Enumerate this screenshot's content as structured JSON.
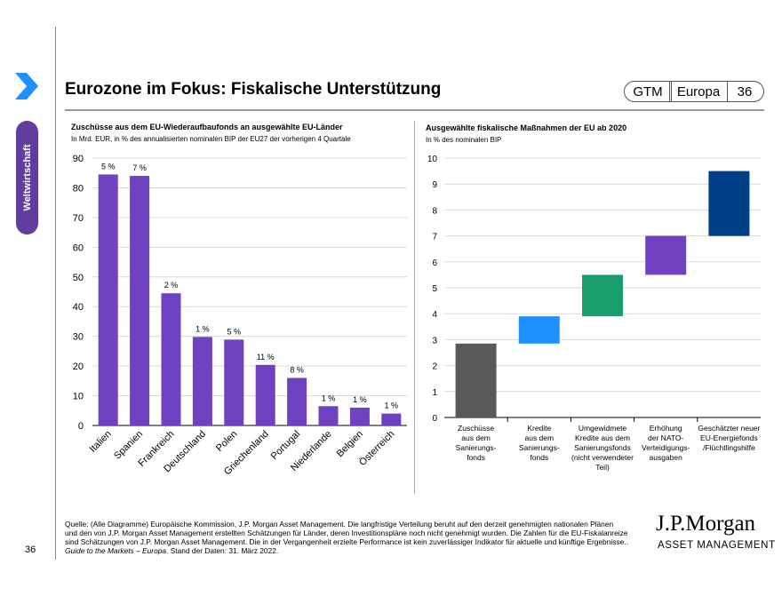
{
  "header": {
    "title": "Eurozone im Fokus: Fiskalische Unterstützung",
    "badge_gtm": "GTM",
    "badge_region": "Europa",
    "badge_page": "36"
  },
  "sidebar": {
    "section_label": "Weltwirtschaft"
  },
  "left_chart": {
    "title": "Zuschüsse aus dem EU-Wiederaufbaufonds an ausgewählte EU-Länder",
    "subtitle": "In Mrd. EUR, in % des annualisierten nominalen BIP der EU27 der vorherigen 4 Quartale"
  },
  "right_chart": {
    "title": "Ausgewählte fiskalische Maßnahmen der EU ab 2020",
    "subtitle": "In % des nominalen BIP"
  },
  "chart_data": [
    {
      "type": "bar",
      "title": "Zuschüsse aus dem EU-Wiederaufbaufonds an ausgewählte EU-Länder",
      "ylabel": "In Mrd. EUR",
      "categories": [
        "Italien",
        "Spanien",
        "Frankreich",
        "Deutschland",
        "Polen",
        "Griechenland",
        "Portugal",
        "Niederlande",
        "Belgien",
        "Österreich"
      ],
      "values": [
        84.5,
        84.0,
        44.5,
        29.8,
        28.9,
        20.4,
        16.0,
        6.5,
        6.0,
        4.0
      ],
      "data_labels": [
        "5 %",
        "7 %",
        "2 %",
        "1 %",
        "5 %",
        "11 %",
        "8 %",
        "1 %",
        "1 %",
        "1 %"
      ],
      "ylim": [
        0,
        90
      ],
      "yticks": [
        0,
        10,
        20,
        30,
        40,
        50,
        60,
        70,
        80,
        90
      ],
      "color": "#6f42c1"
    },
    {
      "type": "bar",
      "subtype": "waterfall",
      "title": "Ausgewählte fiskalische Maßnahmen der EU ab 2020",
      "ylabel": "In % des nominalen BIP",
      "categories": [
        [
          "Zuschüsse",
          "aus dem",
          "Sanierungs-",
          "fonds"
        ],
        [
          "Kredite",
          "aus dem",
          "Sanierungs-",
          "fonds"
        ],
        [
          "Umgewidmete",
          "Kredite aus dem",
          "Sanierungsfonds",
          "(nicht verwendeter",
          "Teil)"
        ],
        [
          "Erhöhung",
          "der NATO-",
          "Verteidigungs-",
          "ausgaben"
        ],
        [
          "Geschätzter neuer",
          "EU-Energiefonds",
          "/Flüchtlingshilfe"
        ]
      ],
      "starts": [
        0,
        2.85,
        3.9,
        5.5,
        7.0
      ],
      "ends": [
        2.85,
        3.9,
        5.5,
        7.0,
        9.5
      ],
      "colors": [
        "#58595b",
        "#1e90ff",
        "#1a9e6e",
        "#6f42c1",
        "#003f87"
      ],
      "ylim": [
        0,
        10
      ],
      "yticks": [
        0,
        1,
        2,
        3,
        4,
        5,
        6,
        7,
        8,
        9,
        10
      ]
    }
  ],
  "footer": {
    "source_line1": "Quelle: (Alle Diagramme) Europäische Kommission, J.P. Morgan Asset Management. Die langfristige Verteilung beruht auf den derzeit genehmigten nationalen Plänen",
    "source_line2": "und den von J.P. Morgan Asset Management erstellten Schätzungen für Länder, deren Investitionspläne noch nicht genehmigt wurden. Die Zahlen für die EU-Fiskalanreize",
    "source_line3": "sind Schätzungen von J.P. Morgan Asset Management. Die in der Vergangenheit erzielte Performance ist kein zuverlässiger Indikator für aktuelle und künftige Ergebnisse..",
    "guide_italic": "Guide to the Markets – Europa",
    "guide_rest": ". Stand der Daten: 31. März 2022.",
    "page_number": "36",
    "logo_main": "J.P.Morgan",
    "logo_sub": "ASSET MANAGEMENT"
  }
}
